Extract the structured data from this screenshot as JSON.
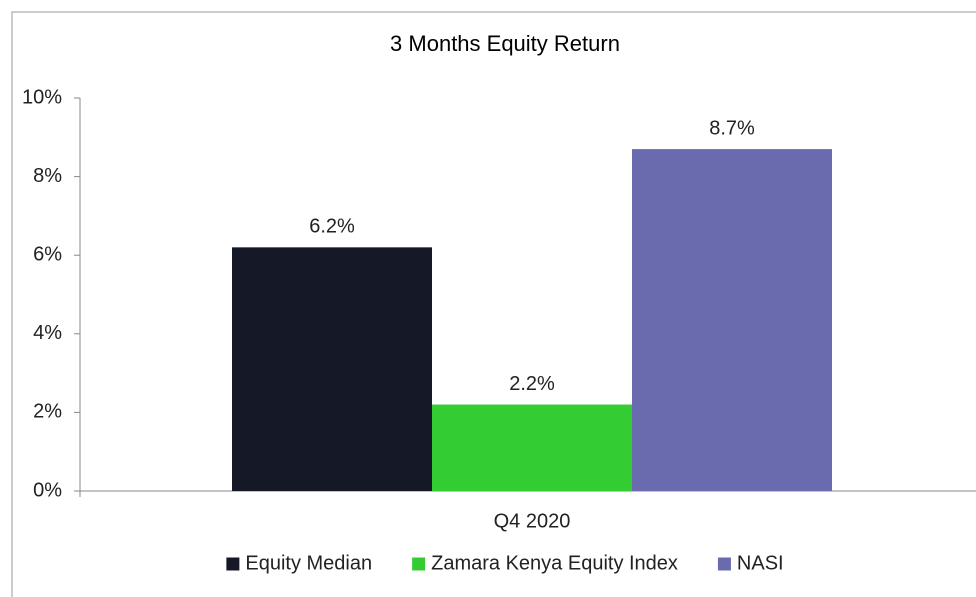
{
  "chart_data": {
    "type": "bar",
    "title": "3 Months Equity Return",
    "categories": [
      "Q4 2020"
    ],
    "series": [
      {
        "name": "Equity Median",
        "color": "#151826",
        "values": [
          6.2
        ],
        "value_labels": [
          "6.2%"
        ]
      },
      {
        "name": "Zamara Kenya Equity Index",
        "color": "#33cc33",
        "values": [
          2.2
        ],
        "value_labels": [
          "2.2%"
        ]
      },
      {
        "name": "NASI",
        "color": "#6a6bae",
        "values": [
          8.7
        ],
        "value_labels": [
          "8.7%"
        ]
      }
    ],
    "ylim": [
      0,
      10
    ],
    "yticks": [
      {
        "value": 0,
        "label": "0%"
      },
      {
        "value": 2,
        "label": "2%"
      },
      {
        "value": 4,
        "label": "4%"
      },
      {
        "value": 6,
        "label": "6%"
      },
      {
        "value": 8,
        "label": "8%"
      },
      {
        "value": 10,
        "label": "10%"
      }
    ],
    "grid": false,
    "legend": "bottom"
  }
}
